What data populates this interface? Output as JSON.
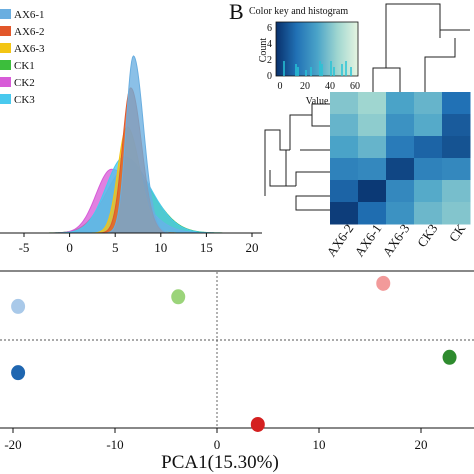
{
  "chart_data": [
    {
      "type": "area",
      "panel": "A",
      "xlim": [
        -10,
        20
      ],
      "x_ticks": [
        "-5",
        "0",
        "5",
        "10",
        "15",
        "20"
      ],
      "x_tick_values": [
        -5,
        0,
        5,
        10,
        15,
        20
      ],
      "series": [
        {
          "name": "AX6-1",
          "color": "#6aaee0",
          "mean": 7.0,
          "sd_left": 0.8,
          "sd_right": 1.1,
          "peak": 1.0
        },
        {
          "name": "AX6-2",
          "color": "#e2572a",
          "mean": 6.7,
          "sd_left": 0.9,
          "sd_right": 1.2,
          "peak": 0.82
        },
        {
          "name": "AX6-3",
          "color": "#f3c514",
          "mean": 6.3,
          "sd_left": 1.0,
          "sd_right": 1.4,
          "peak": 0.6
        },
        {
          "name": "CK1",
          "color": "#3cbe3c",
          "mean": 6.3,
          "sd_left": 2.3,
          "sd_right": 2.8,
          "peak": 0.37
        },
        {
          "name": "CK2",
          "color": "#d85cd8",
          "mean": 4.6,
          "sd_left": 1.7,
          "sd_right": 3.0,
          "peak": 0.36
        },
        {
          "name": "CK3",
          "color": "#49c9ee",
          "mean": 6.0,
          "sd_left": 2.0,
          "sd_right": 2.8,
          "peak": 0.43
        }
      ]
    },
    {
      "type": "heatmap",
      "panel": "B",
      "panel_label": "B",
      "color_key_title": "Color key and histogram",
      "key_ylabel": "Count",
      "key_xlabel": "Value",
      "key_x_ticks": [
        "0",
        "20",
        "40",
        "60"
      ],
      "key_y_ticks": [
        "0",
        "2",
        "4",
        "6"
      ],
      "column_labels": [
        "AX6-2",
        "AX6-1",
        "AX6-3",
        "CK3",
        "CK"
      ],
      "matrix": [
        [
          40,
          45,
          30,
          35,
          15
        ],
        [
          35,
          42,
          25,
          32,
          10
        ],
        [
          30,
          35,
          18,
          12,
          8
        ],
        [
          20,
          22,
          5,
          20,
          22
        ],
        [
          12,
          2,
          22,
          32,
          38
        ],
        [
          3,
          14,
          25,
          36,
          40
        ]
      ]
    },
    {
      "type": "scatter",
      "panel": "C",
      "xlabel": "PCA1(15.30%)",
      "xlim": [
        -21,
        25
      ],
      "ylim": [
        -1,
        1
      ],
      "x_ticks": [
        "-20",
        "-10",
        "0",
        "10",
        "20"
      ],
      "x_tick_values": [
        -20,
        -10,
        0,
        10,
        20
      ],
      "points": [
        {
          "x": -19.5,
          "y": 0.35,
          "color": "#a9c9e9"
        },
        {
          "x": -3.8,
          "y": 0.45,
          "color": "#9bd47a"
        },
        {
          "x": 16.3,
          "y": 0.59,
          "color": "#f29a9a"
        },
        {
          "x": -19.5,
          "y": -0.34,
          "color": "#1f66b0"
        },
        {
          "x": 22.8,
          "y": -0.18,
          "color": "#2e8b2e"
        },
        {
          "x": 4.0,
          "y": -0.88,
          "color": "#d42020"
        }
      ]
    }
  ]
}
